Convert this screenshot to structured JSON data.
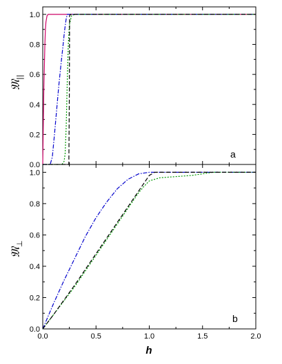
{
  "figure": {
    "xlabel": "h",
    "xticks": [
      "0.0",
      "0.5",
      "1.0",
      "1.5",
      "2.0"
    ],
    "yticks": [
      "0.0",
      "0.2",
      "0.4",
      "0.6",
      "0.8",
      "1.0"
    ]
  },
  "chart_data": [
    {
      "type": "line",
      "panel_label": "a",
      "ylabel_symbol": "𝔐",
      "ylabel_subscript": "||",
      "xlim": [
        0,
        2.0
      ],
      "ylim": [
        0,
        1.05
      ],
      "grid": false,
      "series": [
        {
          "color": "#cc0066",
          "dash": "solid",
          "x": [
            0,
            0.01,
            0.02,
            0.025,
            0.03,
            0.04,
            0.05,
            2.0
          ],
          "y": [
            0,
            0.5,
            0.8,
            0.9,
            0.95,
            0.99,
            1.0,
            1.0
          ]
        },
        {
          "color": "#0000cc",
          "dash": "dashdot",
          "x": [
            0,
            0.07,
            0.09,
            0.11,
            0.13,
            0.15,
            0.17,
            0.19,
            0.2,
            0.21,
            0.22,
            0.23,
            2.0
          ],
          "y": [
            0,
            0,
            0.05,
            0.2,
            0.36,
            0.52,
            0.66,
            0.79,
            0.86,
            0.92,
            0.97,
            1.0,
            1.0
          ]
        },
        {
          "color": "#009900",
          "dash": "dotted",
          "x": [
            0,
            0.18,
            0.2,
            0.21,
            0.22,
            0.23,
            0.24,
            0.25,
            0.27,
            0.3,
            2.0
          ],
          "y": [
            0,
            0,
            0.02,
            0.07,
            0.25,
            0.55,
            0.8,
            0.93,
            0.99,
            1.0,
            1.0
          ]
        },
        {
          "color": "#000000",
          "dash": "dashed",
          "x": [
            0,
            0.245,
            0.25,
            0.252,
            0.26,
            2.0
          ],
          "y": [
            0,
            0,
            0.5,
            0.99,
            1.0,
            1.0
          ]
        }
      ]
    },
    {
      "type": "line",
      "panel_label": "b",
      "ylabel_symbol": "𝔐",
      "ylabel_subscript": "⊥",
      "xlim": [
        0,
        2.0
      ],
      "ylim": [
        0,
        1.05
      ],
      "grid": false,
      "series": [
        {
          "color": "#0000cc",
          "dash": "dashdot",
          "x": [
            0,
            0.1,
            0.2,
            0.3,
            0.4,
            0.5,
            0.6,
            0.7,
            0.8,
            0.9,
            1.0,
            1.1,
            1.2,
            1.5,
            2.0
          ],
          "y": [
            0,
            0.16,
            0.31,
            0.45,
            0.59,
            0.71,
            0.81,
            0.895,
            0.955,
            0.99,
            1.0,
            1.0,
            1.0,
            1.0,
            1.0
          ]
        },
        {
          "color": "#009900",
          "dash": "dotted",
          "x": [
            0,
            0.1,
            0.2,
            0.3,
            0.4,
            0.5,
            0.6,
            0.7,
            0.8,
            0.9,
            0.95,
            1.0,
            1.1,
            1.2,
            1.3,
            1.4,
            1.5,
            1.6,
            1.8,
            2.0
          ],
          "y": [
            0,
            0.09,
            0.18,
            0.27,
            0.37,
            0.47,
            0.57,
            0.67,
            0.77,
            0.87,
            0.91,
            0.945,
            0.965,
            0.97,
            0.975,
            0.98,
            0.99,
            1.0,
            1.0,
            1.0
          ]
        },
        {
          "color": "#000000",
          "dash": "dashed",
          "x": [
            0,
            0.1,
            0.2,
            0.3,
            0.4,
            0.5,
            0.6,
            0.7,
            0.8,
            0.9,
            1.0,
            1.05,
            1.1,
            2.0
          ],
          "y": [
            0,
            0.09,
            0.185,
            0.28,
            0.38,
            0.48,
            0.58,
            0.68,
            0.78,
            0.88,
            0.98,
            1.0,
            1.0,
            1.0
          ]
        }
      ]
    }
  ]
}
